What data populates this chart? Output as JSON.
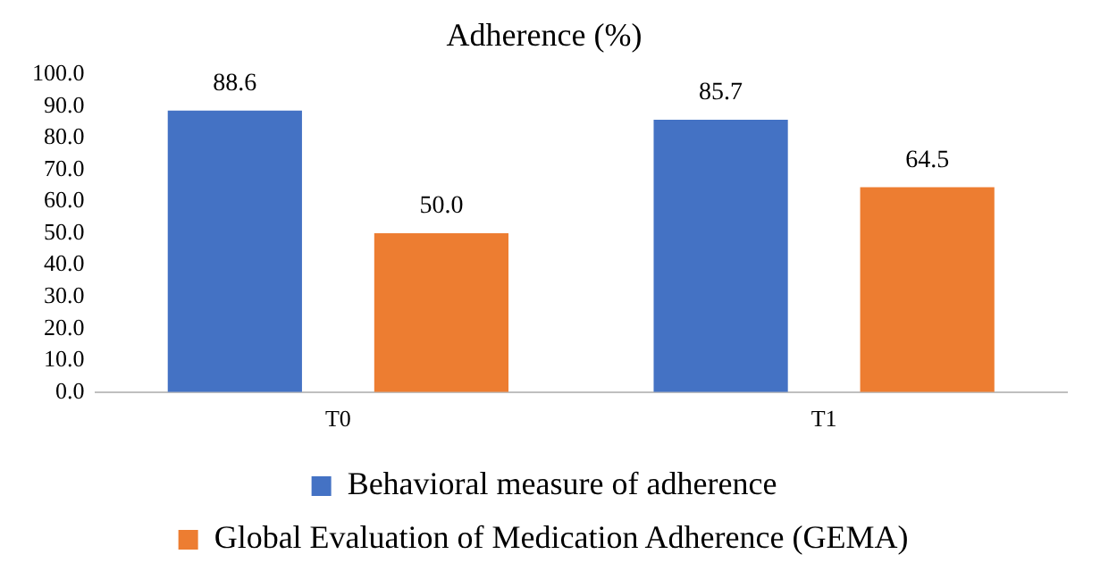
{
  "chart_data": {
    "type": "bar",
    "title": "Adherence (%)",
    "categories": [
      "T0",
      "T1"
    ],
    "series": [
      {
        "name": "Behavioral measure of adherence",
        "color": "#4472c4",
        "values": [
          88.6,
          85.7
        ],
        "value_labels": [
          "88.6",
          "85.7"
        ]
      },
      {
        "name": "Global Evaluation of Medication Adherence (GEMA)",
        "color": "#ed7d31",
        "values": [
          50.0,
          64.5
        ],
        "value_labels": [
          "50.0",
          "64.5"
        ]
      }
    ],
    "ylim": [
      0,
      100
    ],
    "yticks": [
      {
        "value": 0,
        "label": "0.0"
      },
      {
        "value": 10,
        "label": "10.0"
      },
      {
        "value": 20,
        "label": "20.0"
      },
      {
        "value": 30,
        "label": "30.0"
      },
      {
        "value": 40,
        "label": "40.0"
      },
      {
        "value": 50,
        "label": "50.0"
      },
      {
        "value": 60,
        "label": "60.0"
      },
      {
        "value": 70,
        "label": "70.0"
      },
      {
        "value": 80,
        "label": "80.0"
      },
      {
        "value": 90,
        "label": "90.0"
      },
      {
        "value": 100,
        "label": "100.0"
      }
    ],
    "grid": false,
    "legend": "bottom"
  }
}
